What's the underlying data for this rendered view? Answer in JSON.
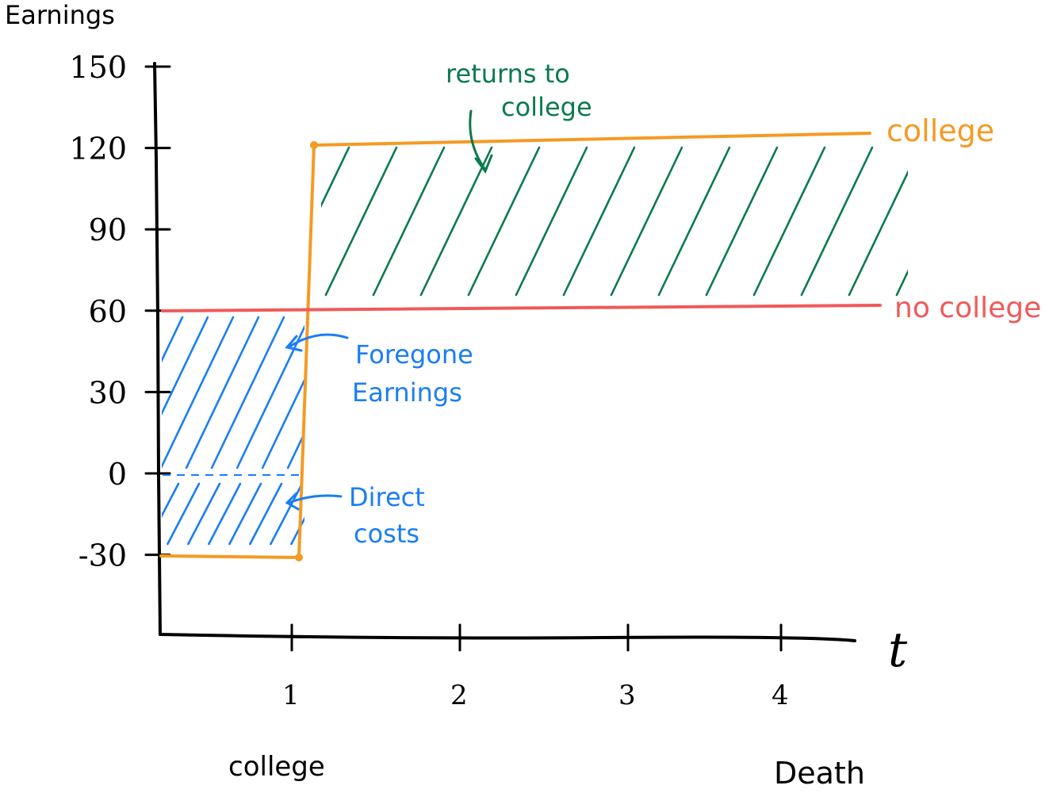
{
  "chart_data": {
    "type": "line",
    "title": "",
    "ylabel": "Earnings",
    "xlabel": "t",
    "ylim": [
      -45,
      150
    ],
    "xlim": [
      0,
      4.5
    ],
    "y_ticks": [
      150,
      120,
      90,
      60,
      30,
      0,
      -30
    ],
    "y_tick_labels": [
      "150",
      "120",
      "90",
      "60",
      "30",
      "0",
      "-30"
    ],
    "x_ticks": [
      1,
      2,
      3,
      4
    ],
    "x_tick_labels": [
      "1",
      "2",
      "3",
      "4"
    ],
    "x_period_labels": [
      {
        "x": 0.9,
        "label": "college"
      },
      {
        "x": 4.2,
        "label": "Death"
      }
    ],
    "series": [
      {
        "name": "college",
        "color": "#f59a23",
        "points": [
          [
            0,
            -30
          ],
          [
            0.9,
            -30
          ],
          [
            0.9,
            120
          ],
          [
            4.4,
            125
          ]
        ]
      },
      {
        "name": "no college",
        "color": "#f05a5a",
        "points": [
          [
            0,
            60
          ],
          [
            4.4,
            63
          ]
        ]
      }
    ],
    "shaded_regions": [
      {
        "label": "returns to college",
        "color": "#0b7a4d",
        "x": [
          0.95,
          4.35
        ],
        "y": [
          62,
          125
        ]
      },
      {
        "label": "Foregone Earnings",
        "color": "#1a7df5",
        "x": [
          0,
          0.85
        ],
        "y": [
          0,
          60
        ]
      },
      {
        "label": "Direct costs",
        "color": "#1a7df5",
        "x": [
          0,
          0.85
        ],
        "y": [
          -30,
          0
        ]
      }
    ],
    "annotations": [
      {
        "text": "returns to college",
        "color": "#0b7a4d"
      },
      {
        "text": "Foregone Earnings",
        "color": "#1a7df5"
      },
      {
        "text": "Direct costs",
        "color": "#1a7df5"
      }
    ]
  }
}
